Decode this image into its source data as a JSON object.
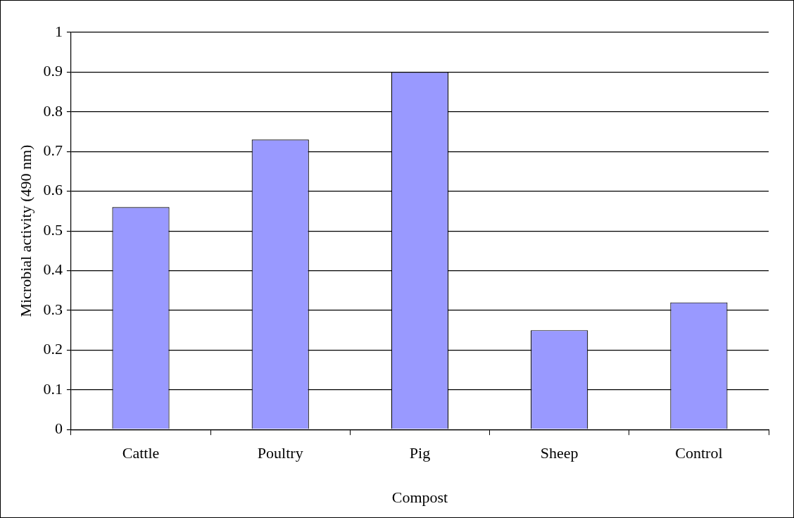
{
  "chart_data": {
    "type": "bar",
    "xlabel": "Compost",
    "ylabel": "Microbial activity (490 nm)",
    "categories": [
      "Cattle",
      "Poultry",
      "Pig",
      "Sheep",
      "Control"
    ],
    "values": [
      0.56,
      0.73,
      0.9,
      0.25,
      0.32
    ],
    "color": "#9999ff",
    "ylim": [
      0,
      1
    ],
    "yticks": [
      0,
      0.1,
      0.2,
      0.3,
      0.4,
      0.5,
      0.6,
      0.7,
      0.8,
      0.9,
      1
    ],
    "grid": "y",
    "legend": false
  }
}
